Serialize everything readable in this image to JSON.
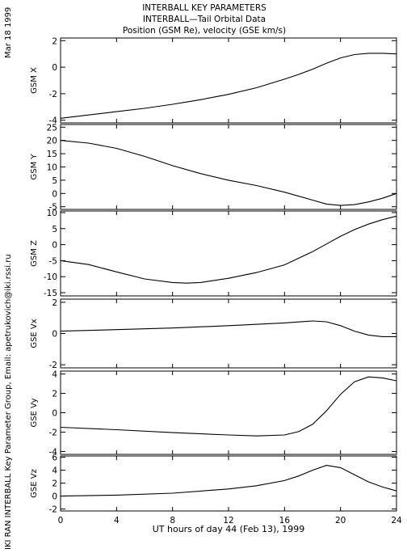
{
  "header": {
    "line1": "INTERBALL KEY PARAMETERS",
    "line2": "INTERBALL—Tail Orbital Data",
    "line3": "Position (GSM Re), velocity (GSE km/s)"
  },
  "side_left": {
    "date": "Mar 18 1999",
    "credit": "IKI RAN INTERBALL Key Parameter Group, Email: apetrukovich@iki.rssi.ru"
  },
  "chart_data": {
    "type": "line",
    "xlabel": "UT hours of day  44 (Feb 13), 1999",
    "xlim": [
      0,
      24
    ],
    "xticks": [
      0,
      4,
      8,
      12,
      16,
      20,
      24
    ],
    "panels": [
      {
        "ylabel": "GSM X",
        "ylim": [
          -4.2,
          2.2
        ],
        "yticks": [
          -4,
          -2,
          0,
          2
        ],
        "x": [
          0,
          2,
          4,
          6,
          8,
          10,
          12,
          14,
          16,
          17,
          18,
          19,
          20,
          21,
          22,
          23,
          24
        ],
        "y": [
          -3.85,
          -3.6,
          -3.35,
          -3.1,
          -2.8,
          -2.45,
          -2.05,
          -1.55,
          -0.9,
          -0.55,
          -0.15,
          0.3,
          0.7,
          0.95,
          1.05,
          1.05,
          1.0
        ]
      },
      {
        "ylabel": "GSM Y",
        "ylim": [
          -6,
          26
        ],
        "yticks": [
          -5,
          0,
          5,
          10,
          15,
          20,
          25
        ],
        "x": [
          0,
          2,
          4,
          6,
          8,
          10,
          12,
          14,
          16,
          18,
          19,
          20,
          21,
          22,
          23,
          24
        ],
        "y": [
          20,
          19,
          17,
          14,
          10.5,
          7.5,
          5,
          3,
          0.5,
          -2.5,
          -4,
          -4.5,
          -4.2,
          -3.2,
          -1.8,
          0
        ]
      },
      {
        "ylabel": "GSM Z",
        "ylim": [
          -16,
          10.5
        ],
        "yticks": [
          -15,
          -10,
          -5,
          0,
          5,
          10
        ],
        "x": [
          0,
          2,
          4,
          6,
          8,
          9,
          10,
          12,
          14,
          16,
          18,
          19,
          20,
          21,
          22,
          23,
          24
        ],
        "y": [
          -5,
          -6.2,
          -8.5,
          -10.7,
          -11.8,
          -12,
          -11.8,
          -10.5,
          -8.7,
          -6.3,
          -2.2,
          0.2,
          2.6,
          4.7,
          6.4,
          7.8,
          8.9
        ]
      },
      {
        "ylabel": "GSE Vx",
        "ylim": [
          -2.2,
          2.2
        ],
        "yticks": [
          -2,
          0,
          2
        ],
        "x": [
          0,
          4,
          8,
          12,
          16,
          18,
          19,
          20,
          21,
          22,
          23,
          24
        ],
        "y": [
          0.15,
          0.25,
          0.35,
          0.5,
          0.68,
          0.8,
          0.75,
          0.5,
          0.15,
          -0.1,
          -0.2,
          -0.2
        ]
      },
      {
        "ylabel": "GSE Vy",
        "ylim": [
          -4.3,
          4.3
        ],
        "yticks": [
          -4,
          -2,
          0,
          2,
          4
        ],
        "x": [
          0,
          4,
          8,
          12,
          14,
          16,
          17,
          18,
          19,
          20,
          21,
          22,
          23,
          24
        ],
        "y": [
          -1.5,
          -1.75,
          -2.05,
          -2.3,
          -2.4,
          -2.3,
          -1.95,
          -1.2,
          0.2,
          1.9,
          3.2,
          3.7,
          3.6,
          3.3
        ]
      },
      {
        "ylabel": "GSE Vz",
        "ylim": [
          -2.3,
          6.2
        ],
        "yticks": [
          -2,
          0,
          2,
          4,
          6
        ],
        "x": [
          0,
          4,
          8,
          12,
          14,
          16,
          17,
          18,
          19,
          20,
          21,
          22,
          23,
          24
        ],
        "y": [
          0.0,
          0.15,
          0.45,
          1.1,
          1.6,
          2.4,
          3.1,
          4.0,
          4.75,
          4.4,
          3.3,
          2.2,
          1.4,
          0.8
        ]
      }
    ]
  }
}
